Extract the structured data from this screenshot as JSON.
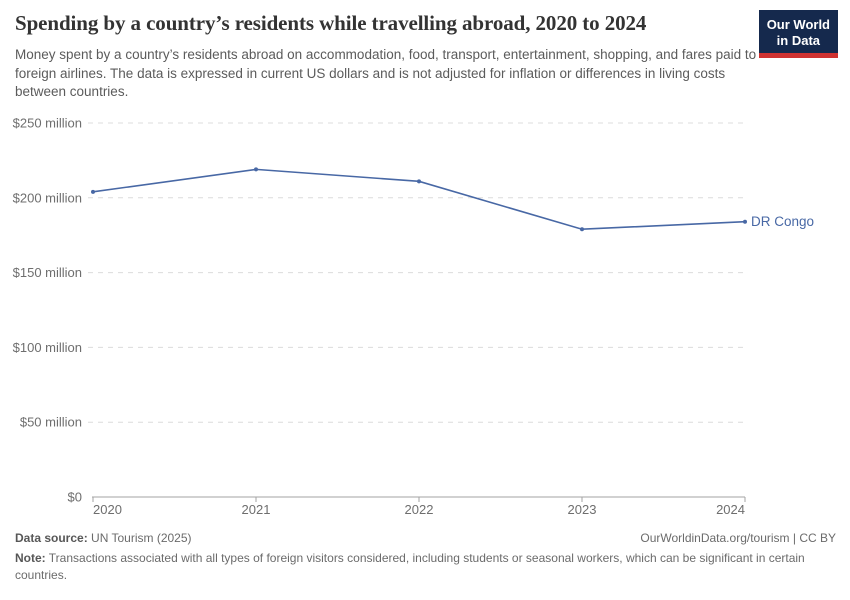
{
  "header": {
    "title": "Spending by a country’s residents while travelling abroad, 2020 to 2024",
    "subtitle": "Money spent by a country’s residents abroad on accommodation, food, transport, entertainment, shopping, and fares paid to foreign airlines. The data is expressed in current US dollars and is not adjusted for inflation or differences in living costs between countries.",
    "logo": {
      "line1": "Our World",
      "line2": "in Data",
      "bg_color": "#15294d",
      "accent_color": "#cf3231"
    }
  },
  "chart_data": {
    "type": "line",
    "title": "Spending by a country’s residents while travelling abroad, 2020 to 2024",
    "x": [
      2020,
      2021,
      2022,
      2023,
      2024
    ],
    "x_tick_labels": [
      "2020",
      "2021",
      "2022",
      "2023",
      "2024"
    ],
    "series": [
      {
        "name": "DR Congo",
        "values": [
          204,
          219,
          211,
          179,
          184
        ],
        "color": "#4868a5"
      }
    ],
    "unit": "current US$ million",
    "ylim": [
      0,
      250
    ],
    "y_ticks": [
      0,
      50,
      100,
      150,
      200,
      250
    ],
    "y_tick_labels": [
      "$0",
      "$50 million",
      "$100 million",
      "$150 million",
      "$200 million",
      "$250 million"
    ],
    "grid": "horizontal dashed",
    "legend_position": "end-of-line label",
    "colors": {
      "gridline": "#dcdcdc",
      "axis": "#a3a3a3",
      "tick_text": "#6e6e6e"
    }
  },
  "footer": {
    "source_label": "Data source:",
    "source_text": " UN Tourism (2025)",
    "attribution": "OurWorldinData.org/tourism | CC BY",
    "note_label": "Note:",
    "note_text": " Transactions associated with all types of foreign visitors considered, including students or seasonal workers, which can be significant in certain countries."
  }
}
